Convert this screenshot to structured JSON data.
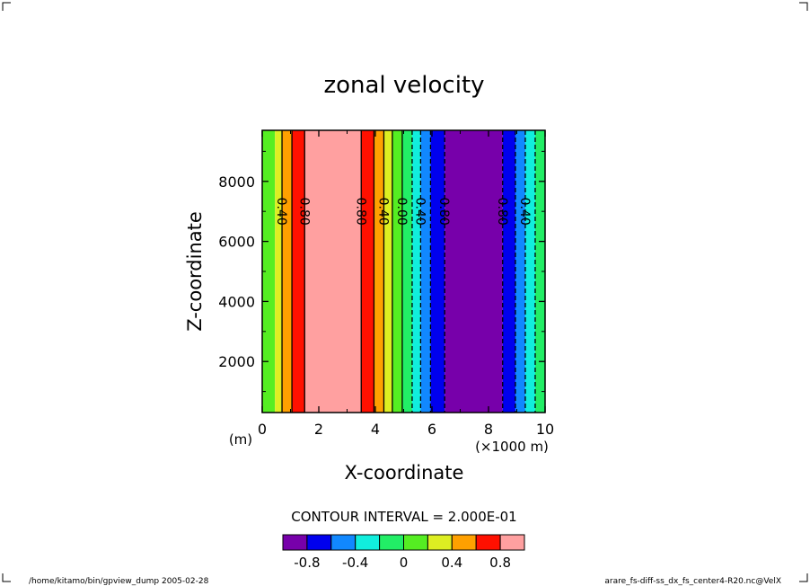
{
  "chart_data": {
    "type": "heatmap",
    "title": "zonal velocity",
    "xlabel": "X-coordinate",
    "ylabel": "Z-coordinate",
    "x_unit_left": "(m)",
    "x_unit_right": "(×1000 m)",
    "xlim": [
      0,
      10
    ],
    "ylim": [
      300,
      9700
    ],
    "x_ticks": [
      "0",
      "2",
      "4",
      "6",
      "8",
      "10"
    ],
    "x_tick_values": [
      0,
      2,
      4,
      6,
      8,
      10
    ],
    "y_ticks": [
      "2000",
      "4000",
      "6000",
      "8000"
    ],
    "y_tick_values": [
      2000,
      4000,
      6000,
      8000
    ],
    "bands": [
      {
        "x0": 0.0,
        "x1": 0.45,
        "color": "#55ee22"
      },
      {
        "x0": 0.45,
        "x1": 0.7,
        "color": "#ddee22"
      },
      {
        "x0": 0.7,
        "x1": 1.05,
        "color": "#ffa000"
      },
      {
        "x0": 1.05,
        "x1": 1.5,
        "color": "#ff1000"
      },
      {
        "x0": 1.5,
        "x1": 3.5,
        "color": "#ffa0a0"
      },
      {
        "x0": 3.5,
        "x1": 3.95,
        "color": "#ff1000"
      },
      {
        "x0": 3.95,
        "x1": 4.3,
        "color": "#ffa000"
      },
      {
        "x0": 4.3,
        "x1": 4.6,
        "color": "#ddee22"
      },
      {
        "x0": 4.6,
        "x1": 4.95,
        "color": "#55ee22"
      },
      {
        "x0": 4.95,
        "x1": 5.3,
        "color": "#22ee66"
      },
      {
        "x0": 5.3,
        "x1": 5.6,
        "color": "#11eedd"
      },
      {
        "x0": 5.6,
        "x1": 5.95,
        "color": "#1188ff"
      },
      {
        "x0": 5.95,
        "x1": 6.45,
        "color": "#0000ee"
      },
      {
        "x0": 6.45,
        "x1": 8.5,
        "color": "#7700aa"
      },
      {
        "x0": 8.5,
        "x1": 8.95,
        "color": "#0000ee"
      },
      {
        "x0": 8.95,
        "x1": 9.3,
        "color": "#1188ff"
      },
      {
        "x0": 9.3,
        "x1": 9.65,
        "color": "#11eedd"
      },
      {
        "x0": 9.65,
        "x1": 10.0,
        "color": "#22ee66"
      }
    ],
    "contour_lines": [
      {
        "x": 0.7,
        "dashed": false
      },
      {
        "x": 1.05,
        "dashed": false
      },
      {
        "x": 1.5,
        "dashed": false
      },
      {
        "x": 3.5,
        "dashed": false
      },
      {
        "x": 3.95,
        "dashed": false
      },
      {
        "x": 4.3,
        "dashed": false
      },
      {
        "x": 4.6,
        "dashed": false
      },
      {
        "x": 4.95,
        "dashed": false
      },
      {
        "x": 5.3,
        "dashed": true
      },
      {
        "x": 5.6,
        "dashed": true
      },
      {
        "x": 5.95,
        "dashed": true
      },
      {
        "x": 6.45,
        "dashed": true
      },
      {
        "x": 8.5,
        "dashed": true
      },
      {
        "x": 8.95,
        "dashed": true
      },
      {
        "x": 9.3,
        "dashed": true
      },
      {
        "x": 9.65,
        "dashed": true
      }
    ],
    "contour_labels": [
      {
        "x": 0.7,
        "y": 7000,
        "text": "0.40"
      },
      {
        "x": 1.5,
        "y": 7000,
        "text": "0.80"
      },
      {
        "x": 3.5,
        "y": 7000,
        "text": "0.80"
      },
      {
        "x": 4.3,
        "y": 7000,
        "text": "0.40"
      },
      {
        "x": 4.95,
        "y": 7000,
        "text": "0.00"
      },
      {
        "x": 5.6,
        "y": 7000,
        "text": "0.40"
      },
      {
        "x": 6.45,
        "y": 7000,
        "text": "0.80"
      },
      {
        "x": 8.5,
        "y": 7000,
        "text": "0.80"
      },
      {
        "x": 9.3,
        "y": 7000,
        "text": "0.40"
      }
    ],
    "contour_interval_text": "CONTOUR INTERVAL = 2.000E-01",
    "colorbar": {
      "colors": [
        "#7700aa",
        "#0000ee",
        "#1188ff",
        "#11eedd",
        "#22ee66",
        "#55ee22",
        "#ddee22",
        "#ffa000",
        "#ff1000",
        "#ffa0a0"
      ],
      "labels": [
        "-0.8",
        "-0.4",
        "0",
        "0.4",
        "0.8"
      ],
      "label_boundaries": [
        1,
        3,
        5,
        7,
        9
      ]
    }
  },
  "footer": {
    "left": "/home/kitamo/bin/gpview_dump  2005-02-28",
    "right": "arare_fs-diff-ss_dx_fs_center4-R20.nc@VelX"
  }
}
